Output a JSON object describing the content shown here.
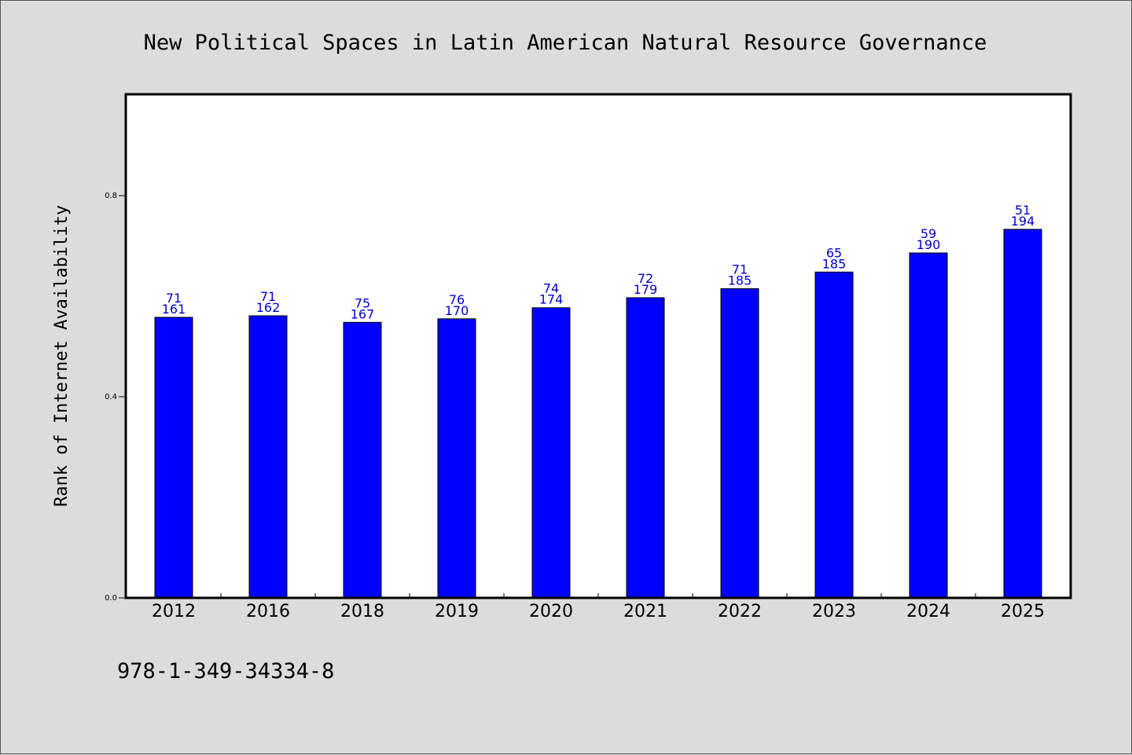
{
  "chart_data": {
    "type": "bar",
    "title": "New Political Spaces in Latin American Natural Resource Governance",
    "xlabel": "",
    "ylabel": "Rank of Internet Availability",
    "ylim": [
      0,
      1.0
    ],
    "yticks": [
      "0.0",
      "0.4",
      "0.8"
    ],
    "ytick_values": [
      0.0,
      0.4,
      0.8
    ],
    "categories": [
      "2012",
      "2016",
      "2018",
      "2019",
      "2020",
      "2021",
      "2022",
      "2023",
      "2024",
      "2025"
    ],
    "values": [
      0.558,
      0.561,
      0.548,
      0.555,
      0.577,
      0.597,
      0.615,
      0.648,
      0.686,
      0.733
    ],
    "labels_top": [
      "71",
      "71",
      "75",
      "76",
      "74",
      "72",
      "71",
      "65",
      "59",
      "51"
    ],
    "labels_bottom": [
      "161",
      "162",
      "167",
      "170",
      "174",
      "179",
      "185",
      "185",
      "190",
      "194"
    ],
    "bar_color": "#0000ff",
    "label_color": "#0000cc",
    "grid": false,
    "legend": "none"
  },
  "footer": {
    "isbn": "978-1-349-34334-8"
  }
}
